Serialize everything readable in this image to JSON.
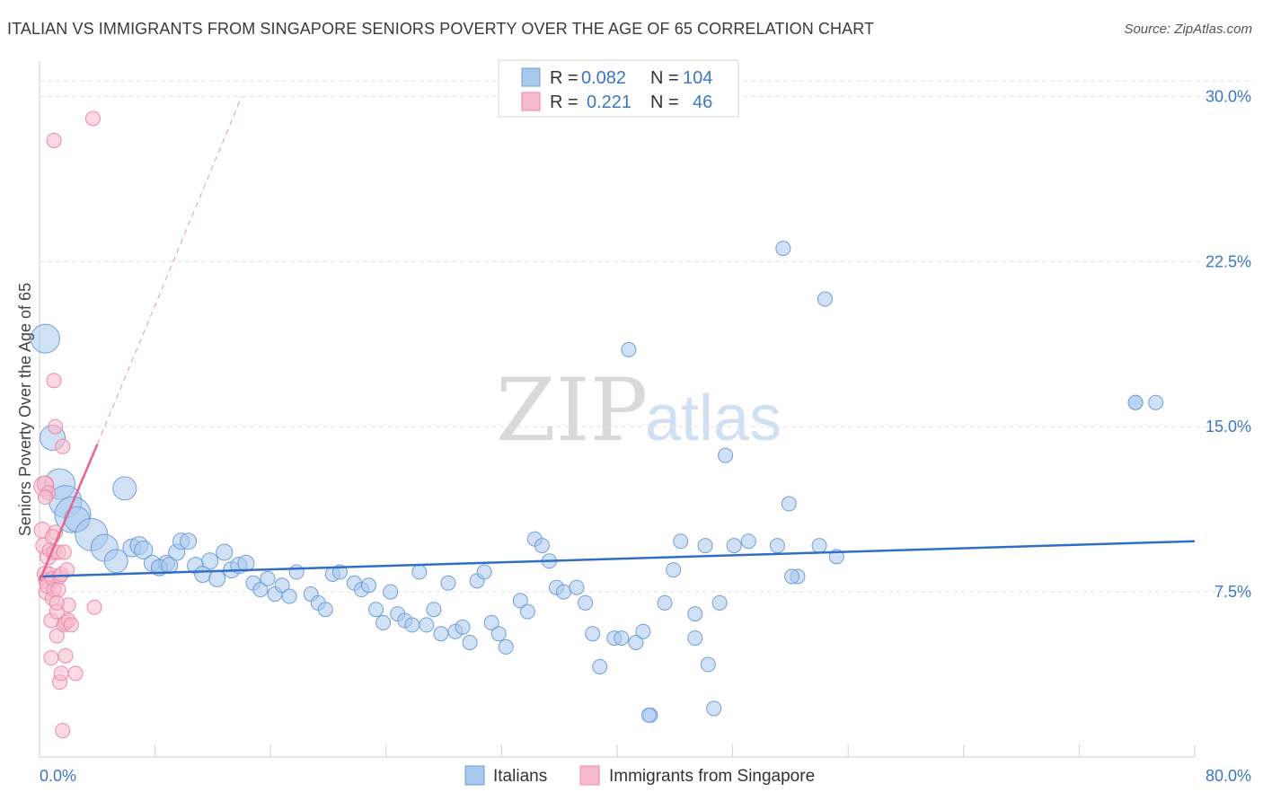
{
  "title": "ITALIAN VS IMMIGRANTS FROM SINGAPORE SENIORS POVERTY OVER THE AGE OF 65 CORRELATION CHART",
  "source": "Source: ZipAtlas.com",
  "watermark": {
    "left": "ZIP",
    "right": "atlas"
  },
  "colors": {
    "blue_fill": "#a9c8ee",
    "blue_stroke": "#6f9fd8",
    "blue_line": "#2f6fc6",
    "pink_fill": "#f7b9cc",
    "pink_stroke": "#ec8aa9",
    "pink_line": "#e8638f",
    "tick_text": "#3a78c7"
  },
  "legend": {
    "rows": [
      {
        "r_label": "R =",
        "r_value": "0.082",
        "n_label": "N =",
        "n_value": "104"
      },
      {
        "r_label": "R =",
        "r_value": "0.221",
        "n_label": "N =",
        "n_value": "46"
      }
    ]
  },
  "bottom_legend": [
    "Italians",
    "Immigrants from Singapore"
  ],
  "chart_data": {
    "type": "scatter",
    "xlabel": "",
    "ylabel": "Seniors Poverty Over the Age of 65",
    "xlim": [
      0,
      80
    ],
    "ylim": [
      0,
      31.2
    ],
    "x_tick_labels": [
      "0.0%",
      "80.0%"
    ],
    "y_ticks": [
      7.5,
      15.0,
      22.5,
      30.0
    ],
    "y_tick_labels": [
      "7.5%",
      "15.0%",
      "22.5%",
      "30.0%"
    ],
    "grid": "horizontal dashed",
    "legend_position": "top-center",
    "series": [
      {
        "name": "Italians",
        "color": "#a9c8ee",
        "trend": {
          "x": [
            0,
            80
          ],
          "y": [
            8.2,
            9.8
          ]
        },
        "points": [
          [
            0.4,
            19.0,
            16
          ],
          [
            0.9,
            14.5,
            14
          ],
          [
            1.4,
            12.4,
            17
          ],
          [
            1.8,
            11.6,
            18
          ],
          [
            2.3,
            11.0,
            20
          ],
          [
            2.6,
            10.8,
            14
          ],
          [
            3.6,
            10.1,
            18
          ],
          [
            4.5,
            9.5,
            15
          ],
          [
            5.3,
            8.9,
            13
          ],
          [
            5.9,
            12.2,
            13
          ],
          [
            6.4,
            9.5,
            10
          ],
          [
            6.9,
            9.6,
            10
          ],
          [
            7.2,
            9.4,
            10
          ],
          [
            7.8,
            8.8,
            9
          ],
          [
            8.3,
            8.6,
            9
          ],
          [
            8.8,
            8.8,
            9
          ],
          [
            9.5,
            9.3,
            9
          ],
          [
            9.8,
            9.8,
            9
          ],
          [
            10.3,
            9.8,
            9
          ],
          [
            10.8,
            8.7,
            9
          ],
          [
            11.3,
            8.3,
            9
          ],
          [
            11.8,
            8.9,
            9
          ],
          [
            12.3,
            8.1,
            9
          ],
          [
            12.8,
            9.3,
            9
          ],
          [
            13.3,
            8.5,
            9
          ],
          [
            13.8,
            8.7,
            9
          ],
          [
            14.3,
            8.8,
            9
          ],
          [
            14.8,
            7.9,
            8
          ],
          [
            15.3,
            7.6,
            8
          ],
          [
            15.8,
            8.1,
            8
          ],
          [
            16.3,
            7.4,
            8
          ],
          [
            16.8,
            7.8,
            8
          ],
          [
            17.3,
            7.3,
            8
          ],
          [
            17.8,
            8.4,
            8
          ],
          [
            18.8,
            7.4,
            8
          ],
          [
            19.3,
            7.0,
            8
          ],
          [
            19.8,
            6.7,
            8
          ],
          [
            20.3,
            8.3,
            8
          ],
          [
            20.8,
            8.4,
            8
          ],
          [
            21.8,
            7.9,
            8
          ],
          [
            22.3,
            7.6,
            8
          ],
          [
            22.8,
            7.8,
            8
          ],
          [
            23.3,
            6.7,
            8
          ],
          [
            23.8,
            6.1,
            8
          ],
          [
            24.3,
            7.5,
            8
          ],
          [
            24.8,
            6.5,
            8
          ],
          [
            25.3,
            6.2,
            8
          ],
          [
            25.8,
            6.0,
            8
          ],
          [
            26.3,
            8.4,
            8
          ],
          [
            26.8,
            6.0,
            8
          ],
          [
            27.3,
            6.7,
            8
          ],
          [
            27.8,
            5.6,
            8
          ],
          [
            28.3,
            7.9,
            8
          ],
          [
            28.8,
            5.7,
            8
          ],
          [
            29.3,
            5.9,
            8
          ],
          [
            29.8,
            5.2,
            8
          ],
          [
            30.3,
            8.0,
            8
          ],
          [
            30.8,
            8.4,
            8
          ],
          [
            31.3,
            6.1,
            8
          ],
          [
            31.8,
            5.6,
            8
          ],
          [
            32.3,
            5.0,
            8
          ],
          [
            33.3,
            7.1,
            8
          ],
          [
            33.8,
            6.6,
            8
          ],
          [
            34.3,
            9.9,
            8
          ],
          [
            34.8,
            9.6,
            8
          ],
          [
            35.3,
            8.9,
            8
          ],
          [
            35.8,
            7.7,
            8
          ],
          [
            36.3,
            7.5,
            8
          ],
          [
            37.2,
            7.7,
            8
          ],
          [
            37.8,
            7.0,
            8
          ],
          [
            38.3,
            5.6,
            8
          ],
          [
            38.8,
            4.1,
            8
          ],
          [
            39.8,
            5.4,
            8
          ],
          [
            40.3,
            5.4,
            8
          ],
          [
            40.8,
            18.5,
            8
          ],
          [
            41.3,
            5.2,
            8
          ],
          [
            41.8,
            5.7,
            8
          ],
          [
            42.3,
            1.9,
            8
          ],
          [
            43.9,
            8.5,
            8
          ],
          [
            43.3,
            7.0,
            8
          ],
          [
            45.4,
            5.4,
            8
          ],
          [
            44.4,
            9.8,
            8
          ],
          [
            45.4,
            6.5,
            8
          ],
          [
            46.1,
            9.6,
            8
          ],
          [
            46.3,
            4.2,
            8
          ],
          [
            46.7,
            2.2,
            8
          ],
          [
            47.1,
            7.0,
            8
          ],
          [
            47.5,
            13.7,
            8
          ],
          [
            48.1,
            9.6,
            8
          ],
          [
            49.1,
            9.8,
            8
          ],
          [
            51.1,
            9.6,
            8
          ],
          [
            51.5,
            23.1,
            8
          ],
          [
            51.9,
            11.5,
            8
          ],
          [
            52.5,
            8.2,
            8
          ],
          [
            54.0,
            9.6,
            8
          ],
          [
            54.4,
            20.8,
            8
          ],
          [
            55.2,
            9.1,
            8
          ],
          [
            75.9,
            16.1,
            8
          ],
          [
            77.3,
            16.1,
            8
          ],
          [
            75.9,
            16.1,
            8
          ],
          [
            52.1,
            8.2,
            8
          ],
          [
            8.3,
            8.6,
            9
          ],
          [
            9.0,
            8.7,
            9
          ],
          [
            42.2,
            1.9,
            8
          ]
        ]
      },
      {
        "name": "Immigrants from Singapore",
        "color": "#f7b9cc",
        "trend_solid": {
          "x": [
            0,
            4.0
          ],
          "y": [
            8.0,
            14.2
          ]
        },
        "trend_dashed": {
          "x": [
            4.0,
            14.0
          ],
          "y": [
            14.2,
            30.0
          ]
        },
        "points": [
          [
            0.2,
            10.3,
            9
          ],
          [
            0.3,
            9.6,
            9
          ],
          [
            0.3,
            12.3,
            11
          ],
          [
            0.4,
            12.4,
            9
          ],
          [
            0.4,
            8.3,
            9
          ],
          [
            0.5,
            8.0,
            9
          ],
          [
            0.5,
            7.5,
            9
          ],
          [
            0.6,
            9.1,
            9
          ],
          [
            0.6,
            7.8,
            9
          ],
          [
            0.7,
            9.4,
            8
          ],
          [
            0.7,
            8.3,
            8
          ],
          [
            0.8,
            4.5,
            8
          ],
          [
            0.8,
            6.2,
            8
          ],
          [
            0.9,
            7.2,
            8
          ],
          [
            0.9,
            8.1,
            8
          ],
          [
            1.0,
            7.6,
            8
          ],
          [
            1.0,
            9.3,
            8
          ],
          [
            1.1,
            15.0,
            8
          ],
          [
            1.1,
            10.2,
            8
          ],
          [
            1.2,
            6.6,
            8
          ],
          [
            1.2,
            5.5,
            8
          ],
          [
            1.3,
            7.6,
            8
          ],
          [
            1.3,
            9.3,
            8
          ],
          [
            1.4,
            8.2,
            8
          ],
          [
            1.4,
            3.4,
            8
          ],
          [
            1.5,
            3.8,
            8
          ],
          [
            1.5,
            8.3,
            8
          ],
          [
            1.6,
            14.1,
            8
          ],
          [
            1.6,
            1.2,
            8
          ],
          [
            1.7,
            6.0,
            8
          ],
          [
            1.7,
            9.3,
            8
          ],
          [
            1.8,
            6.1,
            8
          ],
          [
            1.8,
            4.6,
            8
          ],
          [
            1.9,
            8.5,
            8
          ],
          [
            2.0,
            6.2,
            8
          ],
          [
            2.0,
            6.9,
            8
          ],
          [
            1.0,
            17.1,
            8
          ],
          [
            1.0,
            28.0,
            8
          ],
          [
            3.7,
            29.0,
            8
          ],
          [
            3.8,
            6.8,
            8
          ],
          [
            2.5,
            3.8,
            8
          ],
          [
            0.6,
            12.0,
            8
          ],
          [
            0.4,
            11.8,
            8
          ],
          [
            1.2,
            7.0,
            8
          ],
          [
            2.2,
            6.0,
            8
          ],
          [
            0.9,
            10.0,
            8
          ]
        ]
      }
    ]
  }
}
